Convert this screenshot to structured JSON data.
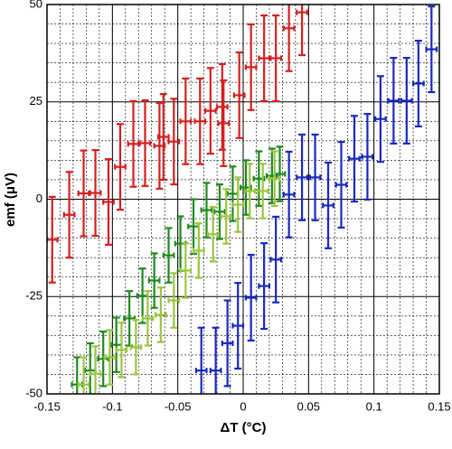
{
  "chart_data": {
    "type": "errorbar",
    "xlabel": "ΔT (°C)",
    "ylabel": "emf (μV)",
    "xlim": [
      -0.15,
      0.15
    ],
    "xticks": [
      -0.15,
      -0.1,
      -0.05,
      0,
      0.05,
      0.1,
      0.15
    ],
    "ylim": [
      -50,
      50
    ],
    "yticks": [
      -50,
      -25,
      0,
      25,
      50
    ],
    "grid": true,
    "xminor": 0.01,
    "yminor": 5,
    "series": [
      {
        "color": "#d42020",
        "xerr": 0.004,
        "yerr": 11,
        "x": [
          -0.146,
          -0.133,
          -0.122,
          -0.113,
          -0.103,
          -0.094,
          -0.084,
          -0.075,
          -0.064,
          -0.061,
          -0.053,
          -0.044,
          -0.033,
          -0.025,
          -0.016,
          -0.015,
          -0.003,
          0.006,
          0.016,
          0.025,
          0.035,
          0.045
        ],
        "values": [
          -10.4,
          -4,
          1.5,
          1.6,
          -0.7,
          8.3,
          14.2,
          14.4,
          13.7,
          16,
          14.8,
          20,
          20,
          22.7,
          23.7,
          19.5,
          26.7,
          33.9,
          36.2,
          36.2,
          43.9,
          48
        ]
      },
      {
        "color": "#1e8a1e",
        "xerr": 0.004,
        "yerr": 7,
        "x": [
          -0.127,
          -0.117,
          -0.107,
          -0.097,
          -0.087,
          -0.077,
          -0.068,
          -0.057,
          -0.048,
          -0.038,
          -0.028,
          -0.018,
          -0.008,
          0.002,
          0.012,
          0.022,
          0.028
        ],
        "values": [
          -47.6,
          -44,
          -41,
          -37.4,
          -30.6,
          -24.8,
          -20.9,
          -14.4,
          -11.4,
          -7,
          -2.8,
          -3.2,
          1.4,
          3,
          5.3,
          6,
          6.5
        ]
      },
      {
        "color": "#9ac640",
        "xerr": 0.004,
        "yerr": 7,
        "x": [
          -0.122,
          -0.113,
          -0.102,
          -0.093,
          -0.082,
          -0.073,
          -0.063,
          -0.053,
          -0.044,
          -0.034,
          -0.023,
          -0.013,
          -0.004,
          0.005,
          0.015,
          0.024
        ],
        "values": [
          -47.6,
          -44.8,
          -40.6,
          -38.7,
          -38,
          -30.6,
          -29.7,
          -26,
          -18.3,
          -13.2,
          -9,
          -4.4,
          -1.4,
          2.1,
          2.1,
          5.3
        ]
      },
      {
        "color": "#1a28c0",
        "xerr": 0.004,
        "yerr": 11,
        "x": [
          -0.032,
          -0.021,
          -0.012,
          -0.004,
          0.006,
          0.016,
          0.025,
          0.035,
          0.045,
          0.055,
          0.065,
          0.075,
          0.085,
          0.095,
          0.105,
          0.115,
          0.125,
          0.134,
          0.144
        ],
        "values": [
          -44,
          -44,
          -37,
          -32.5,
          -25.3,
          -22.3,
          -15.5,
          1.2,
          5.6,
          5.6,
          -1.6,
          3.7,
          10.4,
          10.9,
          20.6,
          25.3,
          25.3,
          29.7,
          38.5
        ]
      }
    ]
  }
}
